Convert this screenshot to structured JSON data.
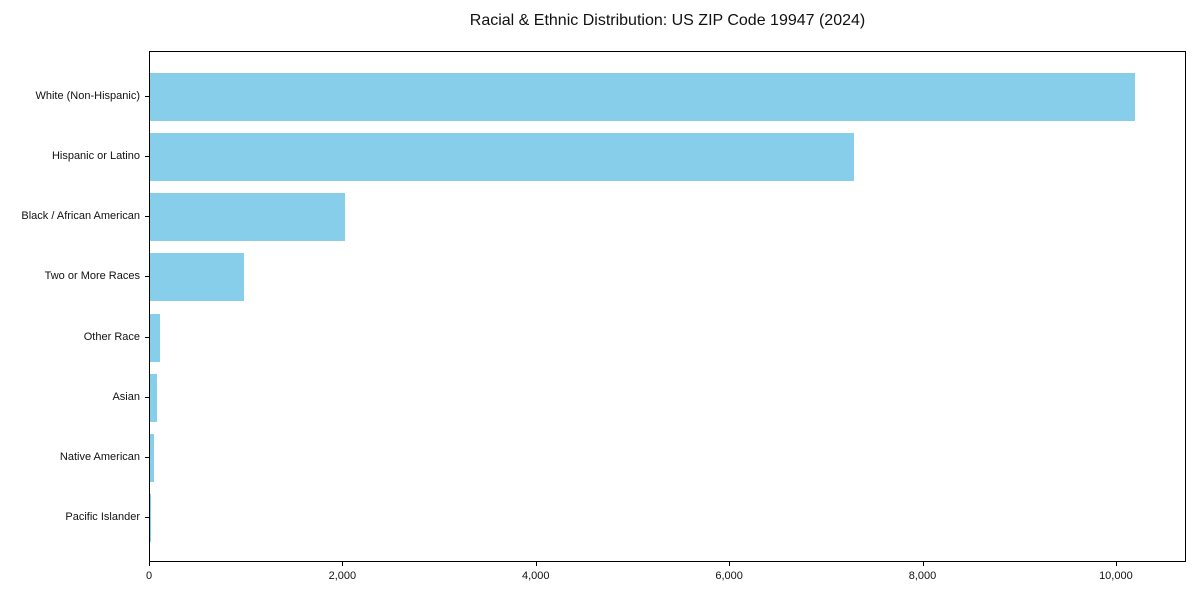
{
  "title": "Racial & Ethnic Distribution: US ZIP Code 19947 (2024)",
  "colors": {
    "bar": "#87CEEB",
    "axis": "#000000",
    "text": "#111111",
    "background": "#ffffff"
  },
  "chart_data": {
    "type": "bar",
    "orientation": "horizontal",
    "title": "Racial & Ethnic Distribution: US ZIP Code 19947 (2024)",
    "categories": [
      "White (Non-Hispanic)",
      "Hispanic or Latino",
      "Black / African American",
      "Two or More Races",
      "Other Race",
      "Asian",
      "Native American",
      "Pacific Islander"
    ],
    "values": [
      10210,
      7300,
      2020,
      975,
      105,
      70,
      45,
      5
    ],
    "xlabel": "",
    "ylabel": "",
    "xlim": [
      0,
      10725
    ],
    "xticks": [
      0,
      2000,
      4000,
      6000,
      8000,
      10000
    ],
    "xtick_labels": [
      "0",
      "2,000",
      "4,000",
      "6,000",
      "8,000",
      "10,000"
    ],
    "grid": false,
    "legend": null,
    "bar_color": "#87CEEB"
  }
}
